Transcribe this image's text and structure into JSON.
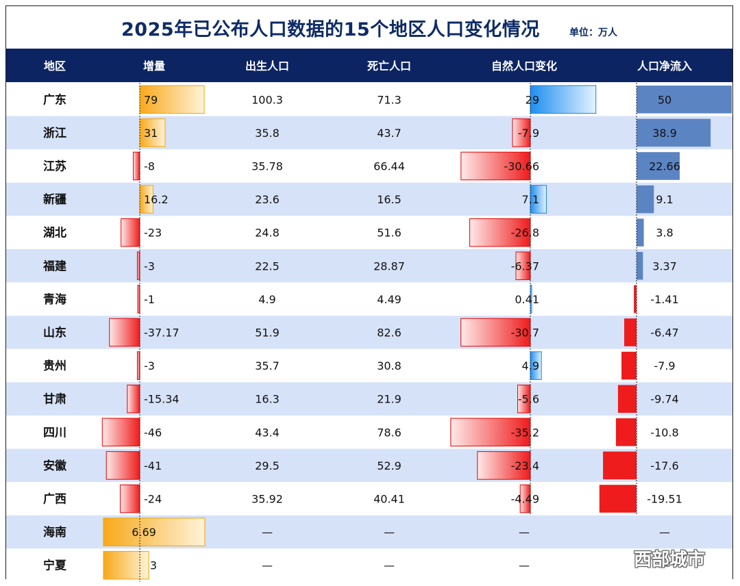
{
  "header": {
    "title": "2025年已公布人口数据的15个地区人口变化情况",
    "unit": "单位：万人"
  },
  "watermark": "西部城市",
  "chart_data": {
    "type": "table",
    "columns": [
      "地区",
      "增量",
      "出生人口",
      "死亡人口",
      "自然人口变化",
      "人口净流入"
    ],
    "rows": [
      {
        "region": "广东",
        "increase": "79",
        "births": "100.3",
        "deaths": "71.3",
        "natural": "29",
        "net_inflow": "50"
      },
      {
        "region": "浙江",
        "increase": "31",
        "births": "35.8",
        "deaths": "43.7",
        "natural": "-7.9",
        "net_inflow": "38.9"
      },
      {
        "region": "江苏",
        "increase": "-8",
        "births": "35.78",
        "deaths": "66.44",
        "natural": "-30.66",
        "net_inflow": "22.66"
      },
      {
        "region": "新疆",
        "increase": "16.2",
        "births": "23.6",
        "deaths": "16.5",
        "natural": "7.1",
        "net_inflow": "9.1"
      },
      {
        "region": "湖北",
        "increase": "-23",
        "births": "24.8",
        "deaths": "51.6",
        "natural": "-26.8",
        "net_inflow": "3.8"
      },
      {
        "region": "福建",
        "increase": "-3",
        "births": "22.5",
        "deaths": "28.87",
        "natural": "-6.37",
        "net_inflow": "3.37"
      },
      {
        "region": "青海",
        "increase": "-1",
        "births": "4.9",
        "deaths": "4.49",
        "natural": "0.41",
        "net_inflow": "-1.41"
      },
      {
        "region": "山东",
        "increase": "-37.17",
        "births": "51.9",
        "deaths": "82.6",
        "natural": "-30.7",
        "net_inflow": "-6.47"
      },
      {
        "region": "贵州",
        "increase": "-3",
        "births": "35.7",
        "deaths": "30.8",
        "natural": "4.9",
        "net_inflow": "-7.9"
      },
      {
        "region": "甘肃",
        "increase": "-15.34",
        "births": "16.3",
        "deaths": "21.9",
        "natural": "-5.6",
        "net_inflow": "-9.74"
      },
      {
        "region": "四川",
        "increase": "-46",
        "births": "43.4",
        "deaths": "78.6",
        "natural": "-35.2",
        "net_inflow": "-10.8"
      },
      {
        "region": "安徽",
        "increase": "-41",
        "births": "29.5",
        "deaths": "52.9",
        "natural": "-23.4",
        "net_inflow": "-17.6"
      },
      {
        "region": "广西",
        "increase": "-24",
        "births": "35.92",
        "deaths": "40.41",
        "natural": "-4.49",
        "net_inflow": "-19.51"
      },
      {
        "region": "海南",
        "increase": "6.69",
        "births": "—",
        "deaths": "—",
        "natural": "—",
        "net_inflow": "—"
      },
      {
        "region": "宁夏",
        "increase": "3",
        "births": "—",
        "deaths": "—",
        "natural": "—",
        "net_inflow": "—"
      }
    ],
    "colors": {
      "header_bg": "#0c2461",
      "header_text": "#ffffff",
      "row_alt": "#d6e2f8",
      "row_base": "#ffffff",
      "title_color": "#0d2b66",
      "increase_positive": "#f7a91a",
      "negative": "#ee1c1c",
      "natural_positive": "#1f8fef",
      "net_positive": "#5b84c3"
    }
  }
}
